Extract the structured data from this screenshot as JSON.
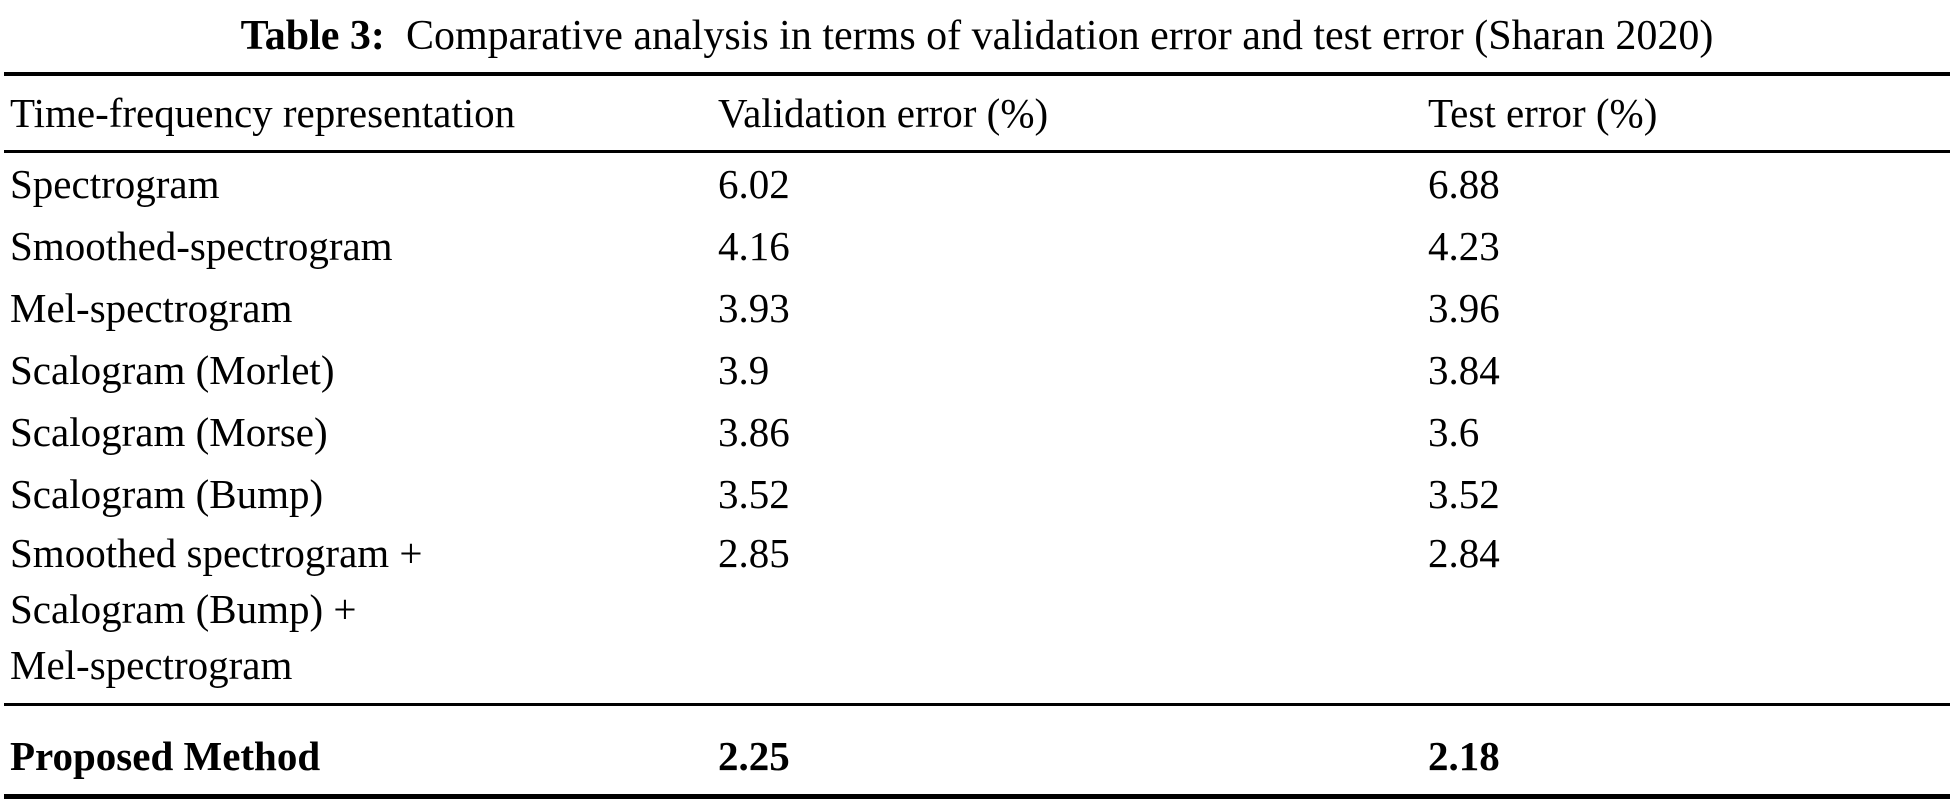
{
  "page": {
    "background_color": "#ffffff",
    "text_color": "#000000"
  },
  "caption": {
    "label": "Table 3:",
    "text": "Comparative analysis in terms of validation error and test error (Sharan 2020)"
  },
  "table": {
    "columns": {
      "representation": "Time-frequency representation",
      "validation": "Validation error (%)",
      "test": "Test error (%)"
    },
    "rows": [
      {
        "name": "Spectrogram",
        "validation_error": "6.02",
        "test_error": "6.88"
      },
      {
        "name": "Smoothed-spectrogram",
        "validation_error": "4.16",
        "test_error": "4.23"
      },
      {
        "name": "Mel-spectrogram",
        "validation_error": "3.93",
        "test_error": "3.96"
      },
      {
        "name": "Scalogram (Morlet)",
        "validation_error": "3.9",
        "test_error": "3.84"
      },
      {
        "name": "Scalogram (Morse)",
        "validation_error": "3.86",
        "test_error": "3.6"
      },
      {
        "name": "Scalogram (Bump)",
        "validation_error": "3.52",
        "test_error": "3.52"
      },
      {
        "name": "Smoothed spectrogram +\nScalogram (Bump) +\nMel-spectrogram",
        "validation_error": "2.85",
        "test_error": "2.84"
      }
    ],
    "highlight_row": {
      "name": "Proposed Method",
      "validation_error": "2.25",
      "test_error": "2.18"
    }
  }
}
